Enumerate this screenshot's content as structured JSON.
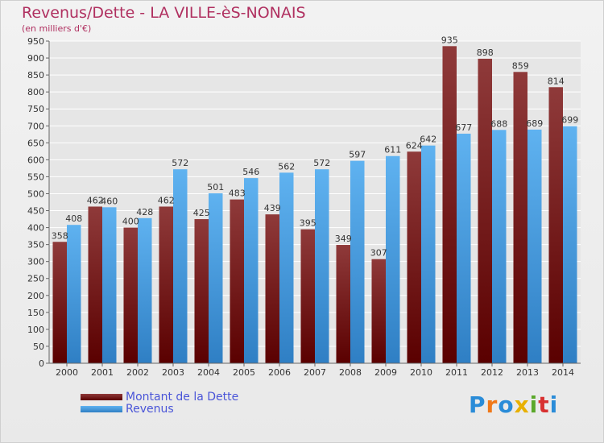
{
  "header": {
    "title": "Revenus/Dette - LA VILLE-èS-NONAIS",
    "subtitle": "(en milliers d'€)"
  },
  "colors": {
    "dette_dark": "#5a0000",
    "dette_light": "#8f3a3a",
    "revenus_light": "#5fb2f0",
    "revenus_dark": "#2f7fc4",
    "grid": "#ffffff",
    "background": "#ebebeb"
  },
  "chart_data": {
    "type": "bar",
    "categories": [
      "2000",
      "2001",
      "2002",
      "2003",
      "2004",
      "2005",
      "2006",
      "2007",
      "2008",
      "2009",
      "2010",
      "2011",
      "2012",
      "2013",
      "2014"
    ],
    "series": [
      {
        "name": "Montant de la Dette",
        "values": [
          358,
          462,
          400,
          462,
          425,
          483,
          439,
          395,
          349,
          307,
          624,
          935,
          898,
          859,
          814
        ]
      },
      {
        "name": "Revenus",
        "values": [
          408,
          460,
          428,
          572,
          501,
          546,
          562,
          572,
          597,
          611,
          642,
          677,
          688,
          689,
          699
        ]
      }
    ],
    "ylim": [
      0,
      950
    ],
    "ytick_step": 50,
    "grid": true,
    "legend_position": "bottom-left"
  },
  "legend": {
    "items": [
      "Montant de la Dette",
      "Revenus"
    ]
  },
  "logo": {
    "letters": [
      "P",
      "r",
      "o",
      "x",
      "i",
      "t",
      "i"
    ],
    "colors": [
      "#2a8cd8",
      "#f07818",
      "#2a8cd8",
      "#e8b000",
      "#5aa82a",
      "#d83030",
      "#2a8cd8"
    ]
  }
}
